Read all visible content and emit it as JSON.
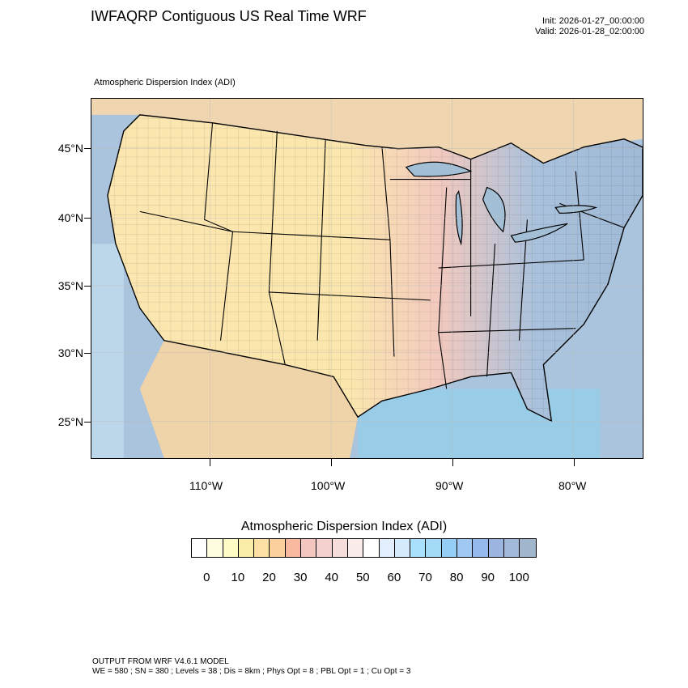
{
  "header": {
    "title": "IWFAQRP Contiguous US Real Time WRF",
    "init": "Init: 2026-01-27_00:00:00",
    "valid": "Valid: 2026-01-28_02:00:00"
  },
  "map": {
    "subtitle": "Atmospheric Dispersion Index   (ADI)",
    "lat_labels": [
      "45°N",
      "40°N",
      "35°N",
      "30°N",
      "25°N"
    ],
    "lon_labels": [
      "110°W",
      "100°W",
      "90°W",
      "80°W"
    ],
    "ocean_color": "#a9c4dc",
    "land_low_color": "#fbe9a8",
    "land_high_color": "#9db9d8"
  },
  "colorbar": {
    "title": "Atmospheric Dispersion Index  (ADI)",
    "labels": [
      "0",
      "10",
      "20",
      "30",
      "40",
      "50",
      "60",
      "70",
      "80",
      "90",
      "100"
    ],
    "colors": [
      "#ffffff",
      "#fffde0",
      "#fdfcc4",
      "#fbeda9",
      "#fde0a4",
      "#fbd09c",
      "#f8b9a0",
      "#f3c6c0",
      "#f4d1cf",
      "#f6ddd9",
      "#fbecec",
      "#ffffff",
      "#e4effe",
      "#d3ebfc",
      "#a9e0fc",
      "#a3dbf7",
      "#95cdf7",
      "#9fc8f3",
      "#95b8ed",
      "#9cb5e0",
      "#a2b9d9",
      "#9fb6cc"
    ]
  },
  "footer": {
    "line1": "OUTPUT FROM WRF V4.6.1 MODEL",
    "line2": "WE = 580 ; SN = 380 ; Levels = 38 ; Dis = 8km ; Phys Opt = 8 ; PBL Opt = 1 ; Cu Opt = 3"
  }
}
